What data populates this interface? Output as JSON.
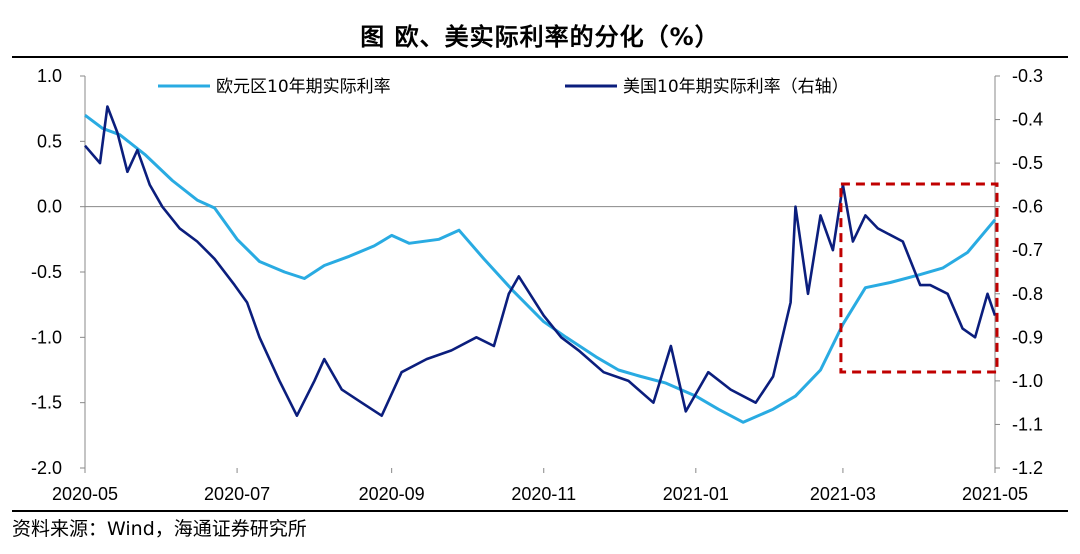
{
  "title": "图  欧、美实际利率的分化（%）",
  "source": "资料来源：Wind，海通证券研究所",
  "colors": {
    "eu": "#29ABE2",
    "us": "#0B1E7D",
    "box": "#C00000"
  },
  "chart_data": {
    "type": "line",
    "x_ticks": [
      "2020-05",
      "2020-07",
      "2020-09",
      "2020-11",
      "2021-01",
      "2021-03",
      "2021-05"
    ],
    "y_left_ticks": [
      "1.0",
      "0.5",
      "0.0",
      "-0.5",
      "-1.0",
      "-1.5",
      "-2.0"
    ],
    "y_right_ticks": [
      "-0.3",
      "-0.4",
      "-0.5",
      "-0.6",
      "-0.7",
      "-0.8",
      "-0.9",
      "-1.0",
      "-1.1",
      "-1.2"
    ],
    "ylim_left": [
      -2.0,
      1.0
    ],
    "ylim_right": [
      -1.2,
      -0.3
    ],
    "xlim": [
      "2020-05-01",
      "2021-05-01"
    ],
    "legend_position": "top",
    "annotation": "dashed red box highlighting 2021-03 to 2021-05",
    "series": [
      {
        "name": "欧元区10年期实际利率",
        "axis": "left",
        "color": "#29ABE2",
        "points": [
          [
            "2020-05-01",
            0.7
          ],
          [
            "2020-05-08",
            0.6
          ],
          [
            "2020-05-15",
            0.55
          ],
          [
            "2020-05-25",
            0.4
          ],
          [
            "2020-06-05",
            0.2
          ],
          [
            "2020-06-15",
            0.05
          ],
          [
            "2020-06-22",
            -0.01
          ],
          [
            "2020-07-01",
            -0.25
          ],
          [
            "2020-07-10",
            -0.42
          ],
          [
            "2020-07-20",
            -0.5
          ],
          [
            "2020-07-28",
            -0.55
          ],
          [
            "2020-08-05",
            -0.45
          ],
          [
            "2020-08-15",
            -0.38
          ],
          [
            "2020-08-25",
            -0.3
          ],
          [
            "2020-09-01",
            -0.22
          ],
          [
            "2020-09-08",
            -0.28
          ],
          [
            "2020-09-20",
            -0.25
          ],
          [
            "2020-09-28",
            -0.18
          ],
          [
            "2020-10-08",
            -0.4
          ],
          [
            "2020-10-20",
            -0.65
          ],
          [
            "2020-11-01",
            -0.88
          ],
          [
            "2020-11-10",
            -1.0
          ],
          [
            "2020-11-22",
            -1.15
          ],
          [
            "2020-12-01",
            -1.25
          ],
          [
            "2020-12-10",
            -1.3
          ],
          [
            "2020-12-20",
            -1.35
          ],
          [
            "2021-01-01",
            -1.45
          ],
          [
            "2021-01-10",
            -1.55
          ],
          [
            "2021-01-20",
            -1.65
          ],
          [
            "2021-02-01",
            -1.55
          ],
          [
            "2021-02-10",
            -1.45
          ],
          [
            "2021-02-20",
            -1.25
          ],
          [
            "2021-03-01",
            -0.9
          ],
          [
            "2021-03-10",
            -0.62
          ],
          [
            "2021-03-20",
            -0.58
          ],
          [
            "2021-04-01",
            -0.52
          ],
          [
            "2021-04-10",
            -0.47
          ],
          [
            "2021-04-20",
            -0.35
          ],
          [
            "2021-05-01",
            -0.1
          ]
        ]
      },
      {
        "name": "美国10年期实际利率（右轴）",
        "axis": "right",
        "color": "#0B1E7D",
        "points": [
          [
            "2020-05-01",
            -0.46
          ],
          [
            "2020-05-07",
            -0.5
          ],
          [
            "2020-05-10",
            -0.37
          ],
          [
            "2020-05-14",
            -0.43
          ],
          [
            "2020-05-18",
            -0.52
          ],
          [
            "2020-05-22",
            -0.47
          ],
          [
            "2020-05-27",
            -0.55
          ],
          [
            "2020-06-01",
            -0.6
          ],
          [
            "2020-06-08",
            -0.65
          ],
          [
            "2020-06-15",
            -0.68
          ],
          [
            "2020-06-22",
            -0.72
          ],
          [
            "2020-06-30",
            -0.78
          ],
          [
            "2020-07-05",
            -0.82
          ],
          [
            "2020-07-10",
            -0.9
          ],
          [
            "2020-07-18",
            -1.0
          ],
          [
            "2020-07-25",
            -1.08
          ],
          [
            "2020-08-01",
            -1.0
          ],
          [
            "2020-08-05",
            -0.95
          ],
          [
            "2020-08-12",
            -1.02
          ],
          [
            "2020-08-20",
            -1.05
          ],
          [
            "2020-08-28",
            -1.08
          ],
          [
            "2020-09-05",
            -0.98
          ],
          [
            "2020-09-15",
            -0.95
          ],
          [
            "2020-09-25",
            -0.93
          ],
          [
            "2020-10-05",
            -0.9
          ],
          [
            "2020-10-12",
            -0.92
          ],
          [
            "2020-10-18",
            -0.8
          ],
          [
            "2020-10-22",
            -0.76
          ],
          [
            "2020-11-01",
            -0.85
          ],
          [
            "2020-11-08",
            -0.9
          ],
          [
            "2020-11-15",
            -0.93
          ],
          [
            "2020-11-25",
            -0.98
          ],
          [
            "2020-12-05",
            -1.0
          ],
          [
            "2020-12-15",
            -1.05
          ],
          [
            "2020-12-22",
            -0.92
          ],
          [
            "2020-12-28",
            -1.07
          ],
          [
            "2021-01-06",
            -0.98
          ],
          [
            "2021-01-15",
            -1.02
          ],
          [
            "2021-01-25",
            -1.05
          ],
          [
            "2021-02-01",
            -0.99
          ],
          [
            "2021-02-08",
            -0.82
          ],
          [
            "2021-02-10",
            -0.6
          ],
          [
            "2021-02-15",
            -0.8
          ],
          [
            "2021-02-20",
            -0.62
          ],
          [
            "2021-02-25",
            -0.7
          ],
          [
            "2021-03-01",
            -0.55
          ],
          [
            "2021-03-05",
            -0.68
          ],
          [
            "2021-03-10",
            -0.62
          ],
          [
            "2021-03-15",
            -0.65
          ],
          [
            "2021-03-25",
            -0.68
          ],
          [
            "2021-04-01",
            -0.78
          ],
          [
            "2021-04-05",
            -0.78
          ],
          [
            "2021-04-12",
            -0.8
          ],
          [
            "2021-04-18",
            -0.88
          ],
          [
            "2021-04-23",
            -0.9
          ],
          [
            "2021-04-28",
            -0.8
          ],
          [
            "2021-05-01",
            -0.85
          ]
        ]
      }
    ]
  }
}
